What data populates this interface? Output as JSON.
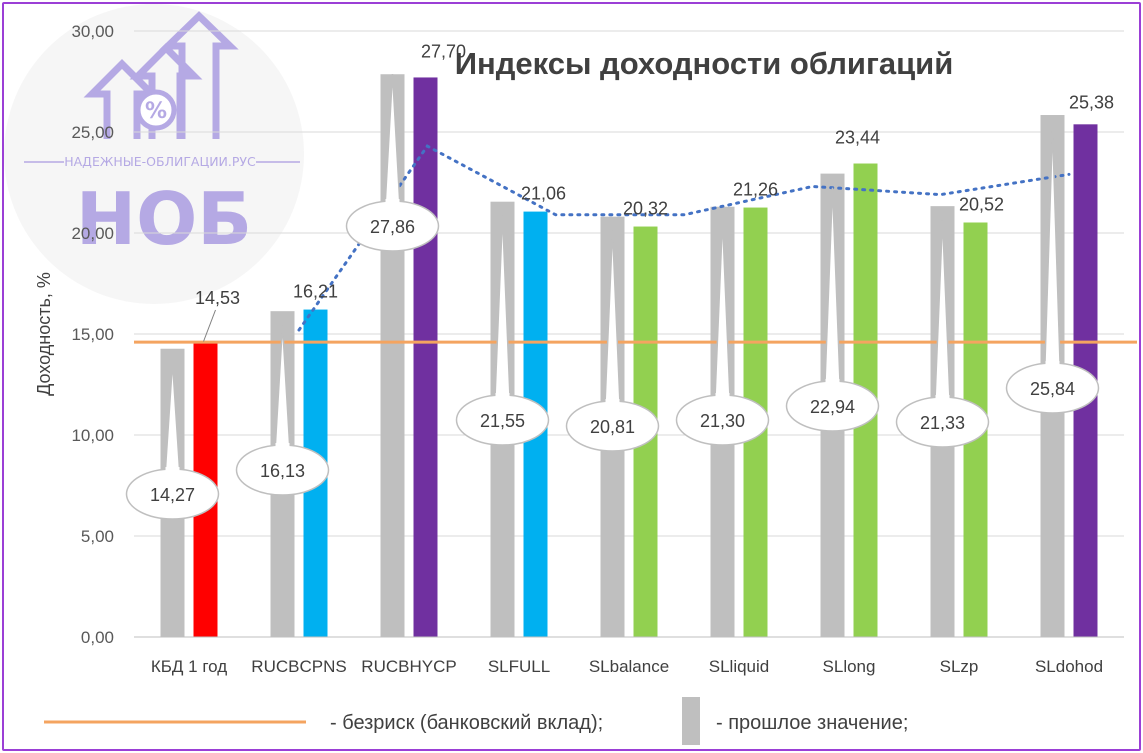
{
  "chart_data": {
    "type": "bar",
    "title": "Индексы доходности облигаций",
    "ylabel": "Доходность, %",
    "xlabel": "",
    "ylim": [
      0,
      30
    ],
    "yticks": [
      "0,00",
      "5,00",
      "10,00",
      "15,00",
      "20,00",
      "25,00",
      "30,00"
    ],
    "grid": true,
    "categories": [
      "КБД 1 год",
      "RUCBCPNS",
      "RUCBHYCP",
      "SLFULL",
      "SLbalance",
      "SLliquid",
      "SLlong",
      "SLzp",
      "SLdohod"
    ],
    "series": [
      {
        "name": "- прошлое значение;",
        "color": "#bfbfbf",
        "values": [
          14.27,
          16.13,
          27.86,
          21.55,
          20.81,
          21.3,
          22.94,
          21.33,
          25.84
        ],
        "labels": [
          "14,27",
          "16,13",
          "27,86",
          "21,55",
          "20,81",
          "21,30",
          "22,94",
          "21,33",
          "25,84"
        ]
      },
      {
        "values": [
          14.53,
          16.21,
          27.7,
          21.06,
          20.32,
          21.26,
          23.44,
          20.52,
          25.38
        ],
        "labels": [
          "14,53",
          "16,21",
          "27,70",
          "21,06",
          "20,32",
          "21,26",
          "23,44",
          "20,52",
          "25,38"
        ],
        "colors": [
          "#ff0000",
          "#00b0f0",
          "#7030a0",
          "#00b0f0",
          "#92d050",
          "#92d050",
          "#92d050",
          "#92d050",
          "#7030a0"
        ]
      }
    ],
    "riskfree": {
      "name": "- безриск (банковский вклад);",
      "value": 14.6,
      "color": "#f4a460"
    },
    "trend": {
      "color": "#4472c4",
      "values": [
        15.2,
        24.3,
        20.9,
        20.9,
        22.3,
        21.9,
        22.9
      ]
    },
    "legend_placement": "bottom"
  },
  "logo": {
    "caption": "НАДЕЖНЫЕ-ОБЛИГАЦИИ.РУС",
    "acronym": "НОБ",
    "symbol": "%",
    "color": "#a99be0"
  }
}
